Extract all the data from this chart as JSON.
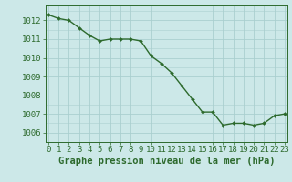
{
  "x": [
    0,
    1,
    2,
    3,
    4,
    5,
    6,
    7,
    8,
    9,
    10,
    11,
    12,
    13,
    14,
    15,
    16,
    17,
    18,
    19,
    20,
    21,
    22,
    23
  ],
  "y": [
    1012.3,
    1012.1,
    1012.0,
    1011.6,
    1011.2,
    1010.9,
    1011.0,
    1011.0,
    1011.0,
    1010.9,
    1010.1,
    1009.7,
    1009.2,
    1008.5,
    1007.8,
    1007.1,
    1007.1,
    1006.4,
    1006.5,
    1006.5,
    1006.4,
    1006.5,
    1006.9,
    1007.0
  ],
  "line_color": "#2d6a2d",
  "marker": "D",
  "marker_size": 2.0,
  "bg_color": "#cce8e8",
  "grid_color": "#aacfcf",
  "text_color": "#2d6a2d",
  "xlabel": "Graphe pression niveau de la mer (hPa)",
  "ylim": [
    1005.5,
    1012.8
  ],
  "yticks": [
    1006,
    1007,
    1008,
    1009,
    1010,
    1011,
    1012
  ],
  "xticks": [
    0,
    1,
    2,
    3,
    4,
    5,
    6,
    7,
    8,
    9,
    10,
    11,
    12,
    13,
    14,
    15,
    16,
    17,
    18,
    19,
    20,
    21,
    22,
    23
  ],
  "xlabel_fontsize": 7.5,
  "tick_fontsize": 6.5,
  "line_width": 1.0
}
